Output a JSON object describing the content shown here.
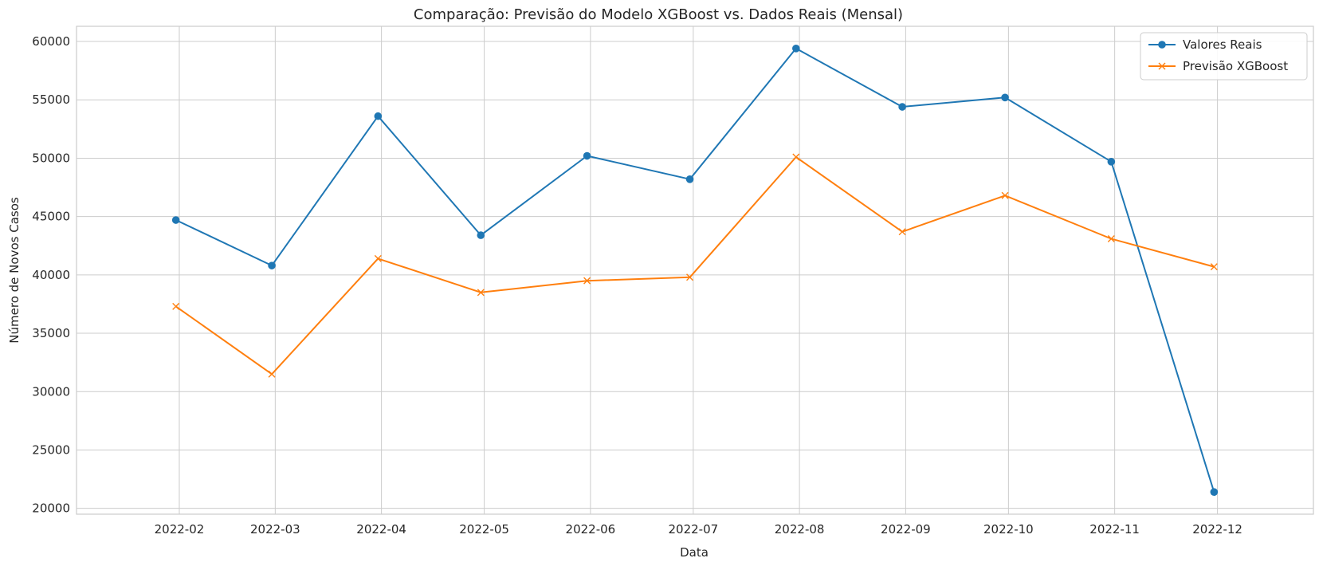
{
  "chart_data": {
    "type": "line",
    "title": "Comparação: Previsão do Modelo XGBoost vs. Dados Reais (Mensal)",
    "xlabel": "Data",
    "ylabel": "Número de Novos Casos",
    "x_tick_labels": [
      "2022-02",
      "2022-03",
      "2022-04",
      "2022-05",
      "2022-06",
      "2022-07",
      "2022-08",
      "2022-09",
      "2022-10",
      "2022-11",
      "2022-12"
    ],
    "y_ticks": [
      20000,
      25000,
      30000,
      35000,
      40000,
      45000,
      50000,
      55000,
      60000
    ],
    "ylim": [
      19500,
      61300
    ],
    "xlim": [
      "2022-01-02",
      "2022-12-29"
    ],
    "grid": true,
    "legend_position": "top-right",
    "series": [
      {
        "name": "Valores Reais",
        "color": "#1f77b4",
        "marker": "circle",
        "x": [
          "2022-01-31",
          "2022-02-28",
          "2022-03-31",
          "2022-04-30",
          "2022-05-31",
          "2022-06-30",
          "2022-07-31",
          "2022-08-31",
          "2022-09-30",
          "2022-10-31",
          "2022-11-30"
        ],
        "values": [
          44700,
          40800,
          53600,
          43400,
          50200,
          48200,
          59400,
          54400,
          55200,
          49700,
          21400
        ]
      },
      {
        "name": "Previsão XGBoost",
        "color": "#ff7f0e",
        "marker": "x",
        "x": [
          "2022-01-31",
          "2022-02-28",
          "2022-03-31",
          "2022-04-30",
          "2022-05-31",
          "2022-06-30",
          "2022-07-31",
          "2022-08-31",
          "2022-09-30",
          "2022-10-31",
          "2022-11-30"
        ],
        "values": [
          37300,
          31500,
          41400,
          38500,
          39500,
          39800,
          50100,
          43700,
          46800,
          43100,
          40700
        ]
      }
    ]
  }
}
